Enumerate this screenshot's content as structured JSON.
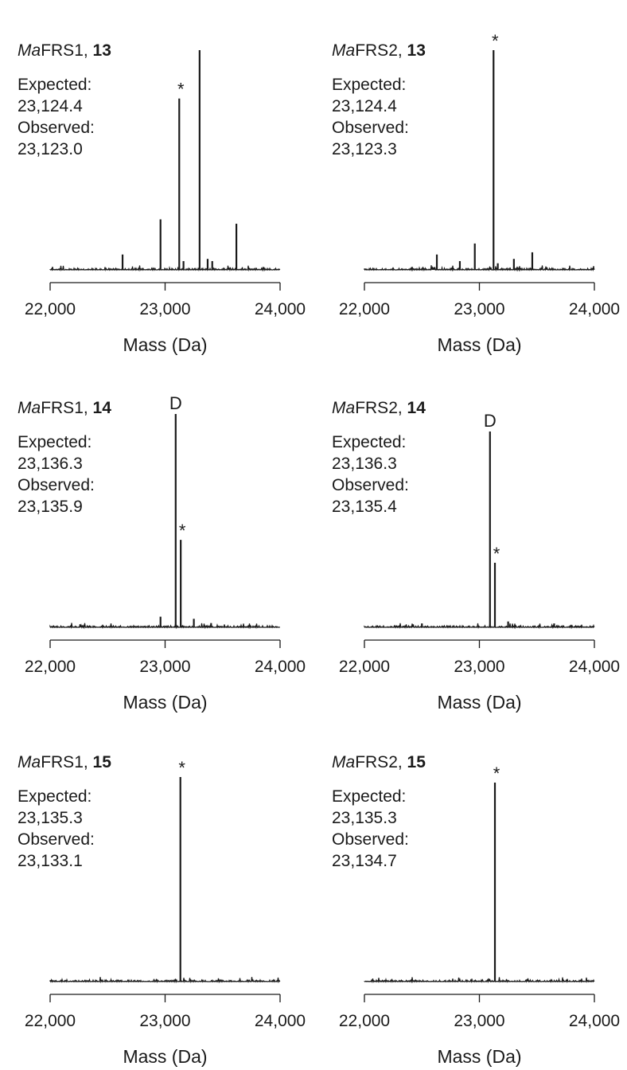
{
  "chart_data": [
    {
      "type": "line",
      "title_prefix": "Ma",
      "title_suffix": "FRS1, ",
      "title_bold": "13",
      "expected_label": "Expected:",
      "expected_value": "23,124.4",
      "observed_label": "Observed:",
      "observed_value": "23,123.0",
      "xlabel": "Mass (Da)",
      "xlim": [
        22000,
        24000
      ],
      "ticks": [
        "22,000",
        "23,000",
        "24,000"
      ],
      "peaks": [
        {
          "x": 22630,
          "y": 0.07
        },
        {
          "x": 22960,
          "y": 0.23
        },
        {
          "x": 23123,
          "y": 0.78,
          "marker": "*"
        },
        {
          "x": 23160,
          "y": 0.04
        },
        {
          "x": 23300,
          "y": 1.0
        },
        {
          "x": 23370,
          "y": 0.05
        },
        {
          "x": 23410,
          "y": 0.04
        },
        {
          "x": 23620,
          "y": 0.21
        }
      ]
    },
    {
      "type": "line",
      "title_prefix": "Ma",
      "title_suffix": "FRS2, ",
      "title_bold": "13",
      "expected_label": "Expected:",
      "expected_value": "23,124.4",
      "observed_label": "Observed:",
      "observed_value": "23,123.3",
      "xlabel": "Mass (Da)",
      "xlim": [
        22000,
        24000
      ],
      "ticks": [
        "22,000",
        "23,000",
        "24,000"
      ],
      "peaks": [
        {
          "x": 22630,
          "y": 0.07
        },
        {
          "x": 22830,
          "y": 0.04
        },
        {
          "x": 22960,
          "y": 0.12
        },
        {
          "x": 23123,
          "y": 1.0,
          "marker": "*"
        },
        {
          "x": 23160,
          "y": 0.03
        },
        {
          "x": 23300,
          "y": 0.05
        },
        {
          "x": 23460,
          "y": 0.08
        }
      ]
    },
    {
      "type": "line",
      "title_prefix": "Ma",
      "title_suffix": "FRS1, ",
      "title_bold": "14",
      "expected_label": "Expected:",
      "expected_value": "23,136.3",
      "observed_label": "Observed:",
      "observed_value": "23,135.9",
      "xlabel": "Mass (Da)",
      "xlim": [
        22000,
        24000
      ],
      "ticks": [
        "22,000",
        "23,000",
        "24,000"
      ],
      "peaks": [
        {
          "x": 22960,
          "y": 0.05
        },
        {
          "x": 23092,
          "y": 1.0,
          "marker": "D"
        },
        {
          "x": 23136,
          "y": 0.41,
          "marker": "*"
        },
        {
          "x": 23250,
          "y": 0.04
        },
        {
          "x": 23400,
          "y": 0.02
        }
      ]
    },
    {
      "type": "line",
      "title_prefix": "Ma",
      "title_suffix": "FRS2, ",
      "title_bold": "14",
      "expected_label": "Expected:",
      "expected_value": "23,136.3",
      "observed_label": "Observed:",
      "observed_value": "23,135.4",
      "xlabel": "Mass (Da)",
      "xlim": [
        22000,
        24000
      ],
      "ticks": [
        "22,000",
        "23,000",
        "24,000"
      ],
      "peaks": [
        {
          "x": 22500,
          "y": 0.02
        },
        {
          "x": 23092,
          "y": 1.0,
          "marker": "D"
        },
        {
          "x": 23135,
          "y": 0.33,
          "marker": "*"
        },
        {
          "x": 23250,
          "y": 0.03
        },
        {
          "x": 23650,
          "y": 0.02
        }
      ]
    },
    {
      "type": "line",
      "title_prefix": "Ma",
      "title_suffix": "FRS1, ",
      "title_bold": "15",
      "expected_label": "Expected:",
      "expected_value": "23,135.3",
      "observed_label": "Observed:",
      "observed_value": "23,133.1",
      "xlabel": "Mass (Da)",
      "xlim": [
        22000,
        24000
      ],
      "ticks": [
        "22,000",
        "23,000",
        "24,000"
      ],
      "peaks": [
        {
          "x": 23133,
          "y": 1.0,
          "marker": "*"
        }
      ]
    },
    {
      "type": "line",
      "title_prefix": "Ma",
      "title_suffix": "FRS2, ",
      "title_bold": "15",
      "expected_label": "Expected:",
      "expected_value": "23,135.3",
      "observed_label": "Observed:",
      "observed_value": "23,134.7",
      "xlabel": "Mass (Da)",
      "xlim": [
        22000,
        24000
      ],
      "ticks": [
        "22,000",
        "23,000",
        "24,000"
      ],
      "peaks": [
        {
          "x": 23135,
          "y": 1.0,
          "marker": "*"
        }
      ]
    }
  ]
}
